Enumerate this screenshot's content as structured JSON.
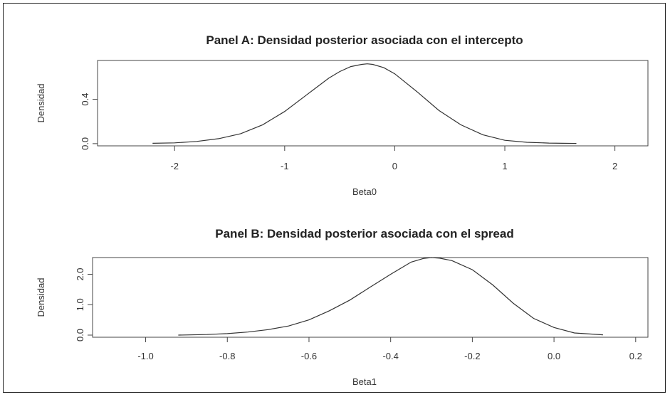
{
  "chart_data": [
    {
      "type": "line",
      "title": "Panel A: Densidad posterior asociada con el intercepto",
      "xlabel": "Beta0",
      "ylabel": "Densidad",
      "xlim": [
        -2.7,
        2.3
      ],
      "ylim": [
        -0.02,
        0.75
      ],
      "xticks": [
        -2,
        -1,
        0,
        1,
        2
      ],
      "xtick_labels": [
        "-2",
        "-1",
        "0",
        "1",
        "2"
      ],
      "yticks": [
        0.0,
        0.4
      ],
      "ytick_labels": [
        "0.0",
        "0.4"
      ],
      "grid": false,
      "series": [
        {
          "x": [
            -2.2,
            -2.0,
            -1.8,
            -1.6,
            -1.4,
            -1.2,
            -1.0,
            -0.8,
            -0.6,
            -0.5,
            -0.4,
            -0.3,
            -0.25,
            -0.2,
            -0.1,
            0.0,
            0.2,
            0.4,
            0.6,
            0.8,
            1.0,
            1.2,
            1.4,
            1.65
          ],
          "y": [
            0.003,
            0.007,
            0.02,
            0.045,
            0.09,
            0.17,
            0.29,
            0.44,
            0.59,
            0.65,
            0.695,
            0.715,
            0.72,
            0.715,
            0.685,
            0.63,
            0.47,
            0.3,
            0.17,
            0.08,
            0.03,
            0.012,
            0.005,
            0.002
          ]
        }
      ]
    },
    {
      "type": "line",
      "title": "Panel B: Densidad posterior asociada con el spread",
      "xlabel": "Beta1",
      "ylabel": "Densidad",
      "xlim": [
        -1.13,
        0.23
      ],
      "ylim": [
        -0.07,
        2.55
      ],
      "xticks": [
        -1.0,
        -0.8,
        -0.6,
        -0.4,
        -0.2,
        0.0,
        0.2
      ],
      "xtick_labels": [
        "-1.0",
        "-0.8",
        "-0.6",
        "-0.4",
        "-0.2",
        "0.0",
        "0.2"
      ],
      "yticks": [
        0.0,
        1.0,
        2.0
      ],
      "ytick_labels": [
        "0.0",
        "1.0",
        "2.0"
      ],
      "grid": false,
      "series": [
        {
          "x": [
            -0.92,
            -0.85,
            -0.8,
            -0.75,
            -0.7,
            -0.65,
            -0.6,
            -0.55,
            -0.5,
            -0.45,
            -0.4,
            -0.35,
            -0.32,
            -0.3,
            -0.28,
            -0.25,
            -0.2,
            -0.15,
            -0.1,
            -0.05,
            0.0,
            0.05,
            0.12
          ],
          "y": [
            0.0,
            0.02,
            0.05,
            0.1,
            0.18,
            0.3,
            0.5,
            0.8,
            1.15,
            1.58,
            2.0,
            2.4,
            2.52,
            2.55,
            2.53,
            2.45,
            2.15,
            1.65,
            1.05,
            0.55,
            0.25,
            0.07,
            0.01
          ]
        }
      ]
    }
  ]
}
